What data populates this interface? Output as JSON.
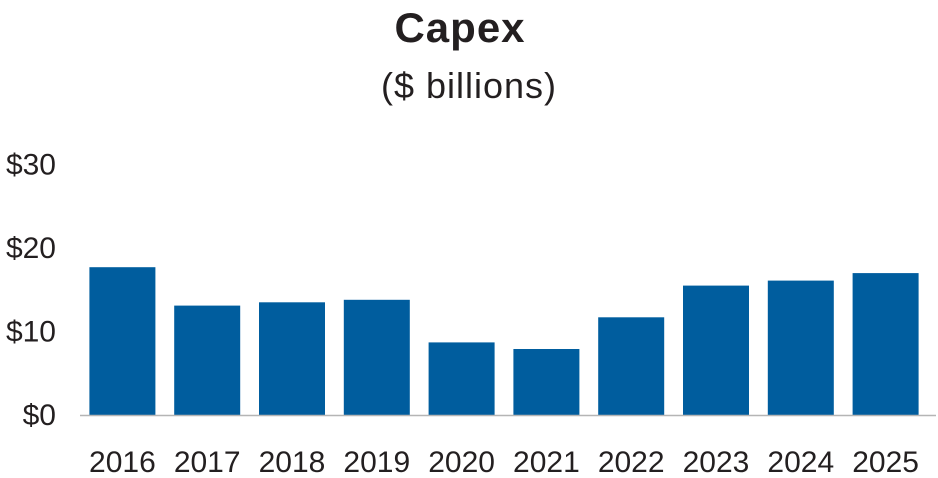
{
  "chart_data": {
    "type": "bar",
    "title": "Capex",
    "subtitle": "($ billions)",
    "xlabel": "",
    "ylabel": "",
    "categories": [
      "2016",
      "2017",
      "2018",
      "2019",
      "2020",
      "2021",
      "2022",
      "2023",
      "2024",
      "2025"
    ],
    "values": [
      17.7,
      13.1,
      13.5,
      13.8,
      8.7,
      7.9,
      11.7,
      15.5,
      16.1,
      17.0
    ],
    "ylim": [
      0,
      30
    ],
    "yticks": [
      0,
      10,
      20,
      30
    ],
    "ytick_labels": [
      "$0",
      "$10",
      "$20",
      "$30"
    ],
    "grid": false,
    "legend": "none",
    "bar_color": "#005d9e",
    "axis_color": "#b5b5b5",
    "text_color": "#231f20"
  }
}
